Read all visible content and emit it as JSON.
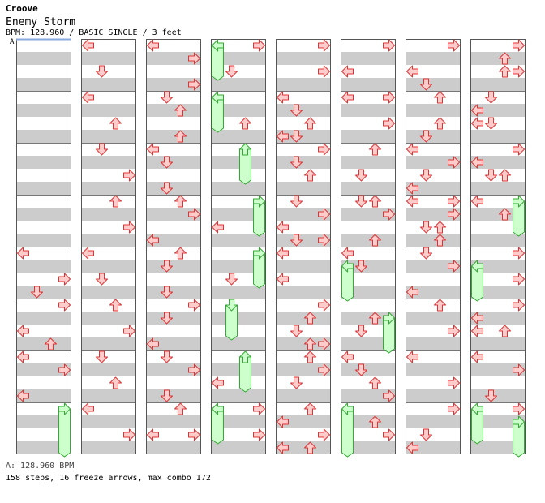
{
  "header": {
    "artist": "Croove",
    "title": "Enemy Storm",
    "info": "BPM: 128.960 / BASIC SINGLE / 3 feet",
    "marker": "A"
  },
  "footer": {
    "bpm_line": "A: 128.960 BPM",
    "stats": "158 steps, 16 freeze arrows, max combo 172"
  },
  "colors": {
    "stripe": "#cccccc",
    "arrow_fill": "#ffcccc",
    "arrow_stroke": "#dd3333",
    "freeze_fill": "#ccffcc",
    "freeze_stroke": "#33aa33",
    "bpm_line": "#88aadd"
  },
  "chart": {
    "columns": 8,
    "measures_per_column": 8,
    "lanes": [
      "left",
      "down",
      "up",
      "right"
    ],
    "freeze_arrows": [
      {
        "column": 1,
        "measure": 8,
        "lane": "right",
        "from_row": 0,
        "to_row": 3
      },
      {
        "column": 4,
        "measure": 1,
        "lane": "left",
        "from_row": 0,
        "to_row": 2
      },
      {
        "column": 4,
        "measure": 2,
        "lane": "left",
        "from_row": 0,
        "to_row": 2
      },
      {
        "column": 4,
        "measure": 3,
        "lane": "up",
        "from_row": 0,
        "to_row": 2
      },
      {
        "column": 4,
        "measure": 4,
        "lane": "right",
        "from_row": 0,
        "to_row": 2
      },
      {
        "column": 4,
        "measure": 5,
        "lane": "right",
        "from_row": 0,
        "to_row": 2
      },
      {
        "column": 4,
        "measure": 6,
        "lane": "down",
        "from_row": 0,
        "to_row": 2
      },
      {
        "column": 4,
        "measure": 7,
        "lane": "up",
        "from_row": 0,
        "to_row": 2
      },
      {
        "column": 4,
        "measure": 8,
        "lane": "left",
        "from_row": 0,
        "to_row": 2
      },
      {
        "column": 6,
        "measure": 5,
        "lane": "left",
        "from_row": 1,
        "to_row": 3
      },
      {
        "column": 6,
        "measure": 6,
        "lane": "right",
        "from_row": 1,
        "to_row": 3
      },
      {
        "column": 6,
        "measure": 8,
        "lane": "left",
        "from_row": 0,
        "to_row": 3
      },
      {
        "column": 8,
        "measure": 4,
        "lane": "right",
        "from_row": 0,
        "to_row": 2
      },
      {
        "column": 8,
        "measure": 5,
        "lane": "left",
        "from_row": 1,
        "to_row": 3
      },
      {
        "column": 8,
        "measure": 8,
        "lane": "left",
        "from_row": 0,
        "to_row": 2
      },
      {
        "column": 8,
        "measure": 8,
        "lane": "right",
        "from_row": 1,
        "to_row": 3
      }
    ],
    "arrows": [
      {
        "column": 1,
        "measure": 5,
        "row": 0,
        "lane": "left"
      },
      {
        "column": 1,
        "measure": 5,
        "row": 2,
        "lane": "right"
      },
      {
        "column": 1,
        "measure": 5,
        "row": 3,
        "lane": "down"
      },
      {
        "column": 1,
        "measure": 6,
        "row": 0,
        "lane": "right"
      },
      {
        "column": 1,
        "measure": 6,
        "row": 2,
        "lane": "left"
      },
      {
        "column": 1,
        "measure": 6,
        "row": 3,
        "lane": "up"
      },
      {
        "column": 1,
        "measure": 7,
        "row": 0,
        "lane": "left"
      },
      {
        "column": 1,
        "measure": 7,
        "row": 1,
        "lane": "right"
      },
      {
        "column": 1,
        "measure": 7,
        "row": 3,
        "lane": "left"
      },
      {
        "column": 2,
        "measure": 1,
        "row": 0,
        "lane": "left"
      },
      {
        "column": 2,
        "measure": 1,
        "row": 2,
        "lane": "down"
      },
      {
        "column": 2,
        "measure": 2,
        "row": 0,
        "lane": "left"
      },
      {
        "column": 2,
        "measure": 2,
        "row": 2,
        "lane": "up"
      },
      {
        "column": 2,
        "measure": 3,
        "row": 0,
        "lane": "down"
      },
      {
        "column": 2,
        "measure": 3,
        "row": 2,
        "lane": "right"
      },
      {
        "column": 2,
        "measure": 4,
        "row": 0,
        "lane": "up"
      },
      {
        "column": 2,
        "measure": 4,
        "row": 2,
        "lane": "right"
      },
      {
        "column": 2,
        "measure": 5,
        "row": 0,
        "lane": "left"
      },
      {
        "column": 2,
        "measure": 5,
        "row": 2,
        "lane": "down"
      },
      {
        "column": 2,
        "measure": 6,
        "row": 0,
        "lane": "up"
      },
      {
        "column": 2,
        "measure": 6,
        "row": 2,
        "lane": "right"
      },
      {
        "column": 2,
        "measure": 7,
        "row": 0,
        "lane": "down"
      },
      {
        "column": 2,
        "measure": 7,
        "row": 2,
        "lane": "up"
      },
      {
        "column": 2,
        "measure": 8,
        "row": 0,
        "lane": "left"
      },
      {
        "column": 2,
        "measure": 8,
        "row": 2,
        "lane": "right"
      },
      {
        "column": 3,
        "measure": 1,
        "row": 0,
        "lane": "left"
      },
      {
        "column": 3,
        "measure": 1,
        "row": 1,
        "lane": "right"
      },
      {
        "column": 3,
        "measure": 1,
        "row": 3,
        "lane": "right"
      },
      {
        "column": 3,
        "measure": 2,
        "row": 0,
        "lane": "down"
      },
      {
        "column": 3,
        "measure": 2,
        "row": 1,
        "lane": "up"
      },
      {
        "column": 3,
        "measure": 2,
        "row": 3,
        "lane": "up"
      },
      {
        "column": 3,
        "measure": 3,
        "row": 0,
        "lane": "left"
      },
      {
        "column": 3,
        "measure": 3,
        "row": 1,
        "lane": "down"
      },
      {
        "column": 3,
        "measure": 3,
        "row": 3,
        "lane": "down"
      },
      {
        "column": 3,
        "measure": 4,
        "row": 0,
        "lane": "up"
      },
      {
        "column": 3,
        "measure": 4,
        "row": 1,
        "lane": "right"
      },
      {
        "column": 3,
        "measure": 4,
        "row": 3,
        "lane": "left"
      },
      {
        "column": 3,
        "measure": 5,
        "row": 0,
        "lane": "up"
      },
      {
        "column": 3,
        "measure": 5,
        "row": 1,
        "lane": "down"
      },
      {
        "column": 3,
        "measure": 5,
        "row": 3,
        "lane": "down"
      },
      {
        "column": 3,
        "measure": 6,
        "row": 0,
        "lane": "right"
      },
      {
        "column": 3,
        "measure": 6,
        "row": 1,
        "lane": "down"
      },
      {
        "column": 3,
        "measure": 6,
        "row": 3,
        "lane": "left"
      },
      {
        "column": 3,
        "measure": 7,
        "row": 0,
        "lane": "down"
      },
      {
        "column": 3,
        "measure": 7,
        "row": 1,
        "lane": "right"
      },
      {
        "column": 3,
        "measure": 7,
        "row": 3,
        "lane": "down"
      },
      {
        "column": 3,
        "measure": 8,
        "row": 0,
        "lane": "up"
      },
      {
        "column": 3,
        "measure": 8,
        "row": 2,
        "lane": "left"
      },
      {
        "column": 3,
        "measure": 8,
        "row": 2,
        "lane": "right"
      },
      {
        "column": 4,
        "measure": 1,
        "row": 0,
        "lane": "right"
      },
      {
        "column": 4,
        "measure": 1,
        "row": 2,
        "lane": "down"
      },
      {
        "column": 4,
        "measure": 2,
        "row": 2,
        "lane": "up"
      },
      {
        "column": 4,
        "measure": 4,
        "row": 2,
        "lane": "left"
      },
      {
        "column": 4,
        "measure": 5,
        "row": 2,
        "lane": "down"
      },
      {
        "column": 4,
        "measure": 7,
        "row": 2,
        "lane": "left"
      },
      {
        "column": 4,
        "measure": 8,
        "row": 0,
        "lane": "right"
      },
      {
        "column": 4,
        "measure": 8,
        "row": 2,
        "lane": "right"
      },
      {
        "column": 5,
        "measure": 1,
        "row": 0,
        "lane": "right"
      },
      {
        "column": 5,
        "measure": 1,
        "row": 2,
        "lane": "right"
      },
      {
        "column": 5,
        "measure": 2,
        "row": 0,
        "lane": "left"
      },
      {
        "column": 5,
        "measure": 2,
        "row": 1,
        "lane": "down"
      },
      {
        "column": 5,
        "measure": 2,
        "row": 2,
        "lane": "up"
      },
      {
        "column": 5,
        "measure": 2,
        "row": 3,
        "lane": "left"
      },
      {
        "column": 5,
        "measure": 2,
        "row": 3,
        "lane": "down"
      },
      {
        "column": 5,
        "measure": 3,
        "row": 0,
        "lane": "right"
      },
      {
        "column": 5,
        "measure": 3,
        "row": 1,
        "lane": "down"
      },
      {
        "column": 5,
        "measure": 3,
        "row": 2,
        "lane": "up"
      },
      {
        "column": 5,
        "measure": 4,
        "row": 0,
        "lane": "down"
      },
      {
        "column": 5,
        "measure": 4,
        "row": 1,
        "lane": "right"
      },
      {
        "column": 5,
        "measure": 4,
        "row": 2,
        "lane": "left"
      },
      {
        "column": 5,
        "measure": 4,
        "row": 3,
        "lane": "down"
      },
      {
        "column": 5,
        "measure": 4,
        "row": 3,
        "lane": "right"
      },
      {
        "column": 5,
        "measure": 5,
        "row": 0,
        "lane": "left"
      },
      {
        "column": 5,
        "measure": 5,
        "row": 2,
        "lane": "left"
      },
      {
        "column": 5,
        "measure": 6,
        "row": 0,
        "lane": "right"
      },
      {
        "column": 5,
        "measure": 6,
        "row": 1,
        "lane": "up"
      },
      {
        "column": 5,
        "measure": 6,
        "row": 2,
        "lane": "down"
      },
      {
        "column": 5,
        "measure": 6,
        "row": 3,
        "lane": "up"
      },
      {
        "column": 5,
        "measure": 6,
        "row": 3,
        "lane": "right"
      },
      {
        "column": 5,
        "measure": 7,
        "row": 0,
        "lane": "up"
      },
      {
        "column": 5,
        "measure": 7,
        "row": 1,
        "lane": "right"
      },
      {
        "column": 5,
        "measure": 7,
        "row": 2,
        "lane": "down"
      },
      {
        "column": 5,
        "measure": 8,
        "row": 0,
        "lane": "up"
      },
      {
        "column": 5,
        "measure": 8,
        "row": 1,
        "lane": "left"
      },
      {
        "column": 5,
        "measure": 8,
        "row": 2,
        "lane": "right"
      },
      {
        "column": 5,
        "measure": 8,
        "row": 3,
        "lane": "left"
      },
      {
        "column": 5,
        "measure": 8,
        "row": 3,
        "lane": "up"
      },
      {
        "column": 6,
        "measure": 1,
        "row": 0,
        "lane": "right"
      },
      {
        "column": 6,
        "measure": 1,
        "row": 2,
        "lane": "left"
      },
      {
        "column": 6,
        "measure": 2,
        "row": 0,
        "lane": "left"
      },
      {
        "column": 6,
        "measure": 2,
        "row": 0,
        "lane": "right"
      },
      {
        "column": 6,
        "measure": 2,
        "row": 2,
        "lane": "right"
      },
      {
        "column": 6,
        "measure": 3,
        "row": 0,
        "lane": "up"
      },
      {
        "column": 6,
        "measure": 3,
        "row": 2,
        "lane": "down"
      },
      {
        "column": 6,
        "measure": 4,
        "row": 0,
        "lane": "down"
      },
      {
        "column": 6,
        "measure": 4,
        "row": 0,
        "lane": "up"
      },
      {
        "column": 6,
        "measure": 4,
        "row": 1,
        "lane": "right"
      },
      {
        "column": 6,
        "measure": 4,
        "row": 3,
        "lane": "up"
      },
      {
        "column": 6,
        "measure": 5,
        "row": 0,
        "lane": "left"
      },
      {
        "column": 6,
        "measure": 5,
        "row": 1,
        "lane": "down"
      },
      {
        "column": 6,
        "measure": 6,
        "row": 1,
        "lane": "up"
      },
      {
        "column": 6,
        "measure": 6,
        "row": 2,
        "lane": "down"
      },
      {
        "column": 6,
        "measure": 7,
        "row": 0,
        "lane": "left"
      },
      {
        "column": 6,
        "measure": 7,
        "row": 1,
        "lane": "down"
      },
      {
        "column": 6,
        "measure": 7,
        "row": 2,
        "lane": "up"
      },
      {
        "column": 6,
        "measure": 7,
        "row": 3,
        "lane": "right"
      },
      {
        "column": 6,
        "measure": 8,
        "row": 1,
        "lane": "up"
      },
      {
        "column": 6,
        "measure": 8,
        "row": 2,
        "lane": "right"
      },
      {
        "column": 7,
        "measure": 1,
        "row": 0,
        "lane": "right"
      },
      {
        "column": 7,
        "measure": 1,
        "row": 2,
        "lane": "left"
      },
      {
        "column": 7,
        "measure": 1,
        "row": 3,
        "lane": "down"
      },
      {
        "column": 7,
        "measure": 2,
        "row": 0,
        "lane": "up"
      },
      {
        "column": 7,
        "measure": 2,
        "row": 2,
        "lane": "up"
      },
      {
        "column": 7,
        "measure": 2,
        "row": 3,
        "lane": "down"
      },
      {
        "column": 7,
        "measure": 3,
        "row": 0,
        "lane": "left"
      },
      {
        "column": 7,
        "measure": 3,
        "row": 1,
        "lane": "right"
      },
      {
        "column": 7,
        "measure": 3,
        "row": 2,
        "lane": "down"
      },
      {
        "column": 7,
        "measure": 3,
        "row": 3,
        "lane": "left"
      },
      {
        "column": 7,
        "measure": 4,
        "row": 0,
        "lane": "left"
      },
      {
        "column": 7,
        "measure": 4,
        "row": 0,
        "lane": "right"
      },
      {
        "column": 7,
        "measure": 4,
        "row": 1,
        "lane": "right"
      },
      {
        "column": 7,
        "measure": 4,
        "row": 2,
        "lane": "down"
      },
      {
        "column": 7,
        "measure": 4,
        "row": 2,
        "lane": "up"
      },
      {
        "column": 7,
        "measure": 4,
        "row": 3,
        "lane": "up"
      },
      {
        "column": 7,
        "measure": 5,
        "row": 0,
        "lane": "down"
      },
      {
        "column": 7,
        "measure": 5,
        "row": 1,
        "lane": "right"
      },
      {
        "column": 7,
        "measure": 5,
        "row": 3,
        "lane": "left"
      },
      {
        "column": 7,
        "measure": 6,
        "row": 0,
        "lane": "up"
      },
      {
        "column": 7,
        "measure": 6,
        "row": 2,
        "lane": "right"
      },
      {
        "column": 7,
        "measure": 7,
        "row": 0,
        "lane": "left"
      },
      {
        "column": 7,
        "measure": 7,
        "row": 2,
        "lane": "right"
      },
      {
        "column": 7,
        "measure": 8,
        "row": 0,
        "lane": "right"
      },
      {
        "column": 7,
        "measure": 8,
        "row": 2,
        "lane": "down"
      },
      {
        "column": 7,
        "measure": 8,
        "row": 3,
        "lane": "left"
      },
      {
        "column": 8,
        "measure": 1,
        "row": 0,
        "lane": "right"
      },
      {
        "column": 8,
        "measure": 1,
        "row": 1,
        "lane": "up"
      },
      {
        "column": 8,
        "measure": 1,
        "row": 2,
        "lane": "up"
      },
      {
        "column": 8,
        "measure": 1,
        "row": 2,
        "lane": "right"
      },
      {
        "column": 8,
        "measure": 2,
        "row": 0,
        "lane": "down"
      },
      {
        "column": 8,
        "measure": 2,
        "row": 1,
        "lane": "left"
      },
      {
        "column": 8,
        "measure": 2,
        "row": 2,
        "lane": "left"
      },
      {
        "column": 8,
        "measure": 2,
        "row": 2,
        "lane": "down"
      },
      {
        "column": 8,
        "measure": 3,
        "row": 0,
        "lane": "right"
      },
      {
        "column": 8,
        "measure": 3,
        "row": 1,
        "lane": "left"
      },
      {
        "column": 8,
        "measure": 3,
        "row": 2,
        "lane": "down"
      },
      {
        "column": 8,
        "measure": 3,
        "row": 2,
        "lane": "up"
      },
      {
        "column": 8,
        "measure": 4,
        "row": 0,
        "lane": "left"
      },
      {
        "column": 8,
        "measure": 4,
        "row": 1,
        "lane": "up"
      },
      {
        "column": 8,
        "measure": 5,
        "row": 0,
        "lane": "right"
      },
      {
        "column": 8,
        "measure": 5,
        "row": 2,
        "lane": "right"
      },
      {
        "column": 8,
        "measure": 6,
        "row": 0,
        "lane": "right"
      },
      {
        "column": 8,
        "measure": 6,
        "row": 1,
        "lane": "left"
      },
      {
        "column": 8,
        "measure": 6,
        "row": 2,
        "lane": "left"
      },
      {
        "column": 8,
        "measure": 6,
        "row": 2,
        "lane": "up"
      },
      {
        "column": 8,
        "measure": 7,
        "row": 0,
        "lane": "left"
      },
      {
        "column": 8,
        "measure": 7,
        "row": 1,
        "lane": "right"
      },
      {
        "column": 8,
        "measure": 7,
        "row": 3,
        "lane": "down"
      },
      {
        "column": 8,
        "measure": 8,
        "row": 0,
        "lane": "right"
      }
    ]
  }
}
